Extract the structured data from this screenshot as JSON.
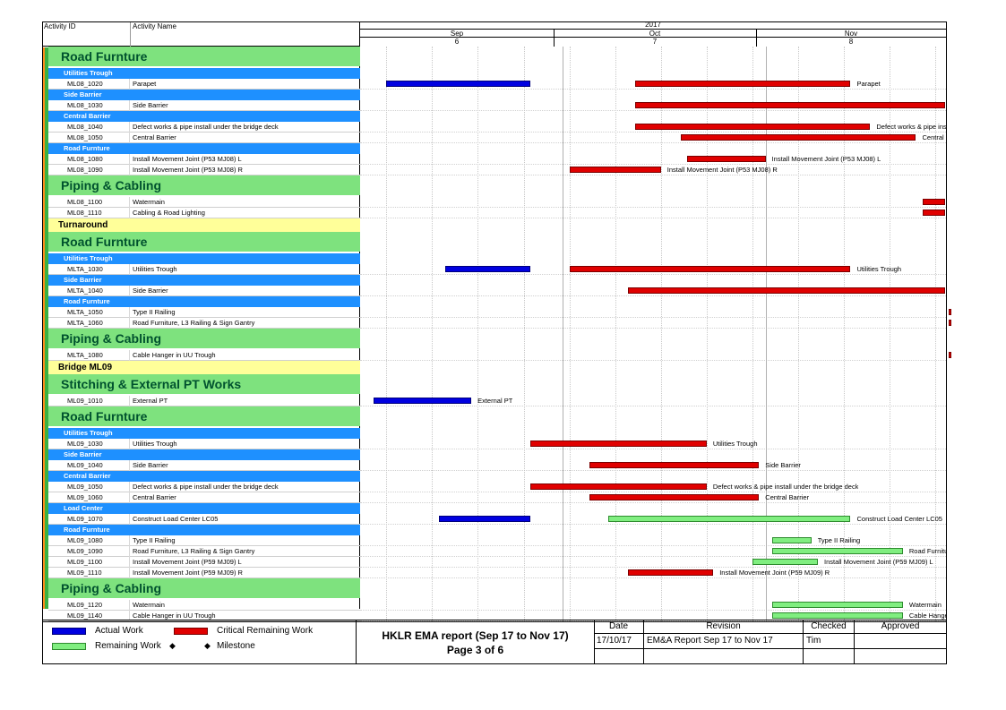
{
  "header": {
    "col_activity_id": "Activity ID",
    "col_activity_name": "Activity Name",
    "year": "2017",
    "months": [
      {
        "name": "Sep",
        "number": "6"
      },
      {
        "name": "Oct",
        "number": "7"
      },
      {
        "name": "Nov",
        "number": "8"
      }
    ]
  },
  "colors": {
    "section": "#7ee27e",
    "band": "#ffff99",
    "subsection": "#1e90ff",
    "actual": "#0000e0",
    "critical": "#e00000",
    "remaining": "#80ee80"
  },
  "chart_data": {
    "type": "gantt",
    "timeline": "Sep 2017 to Nov 2017",
    "rows": [
      {
        "kind": "section",
        "label": "Road Furnture"
      },
      {
        "kind": "sub",
        "label": "Utilities Trough"
      },
      {
        "kind": "act",
        "id": "ML08_1020",
        "name": "Parapet",
        "bars": [
          {
            "type": "actual",
            "start": "2017-09-04",
            "end": "2017-09-26"
          },
          {
            "type": "critical",
            "start": "2017-10-12",
            "end": "2017-11-14",
            "label": "Parapet"
          }
        ]
      },
      {
        "kind": "sub",
        "label": "Side Barrier"
      },
      {
        "kind": "act",
        "id": "ML08_1030",
        "name": "Side Barrier",
        "bars": [
          {
            "type": "critical",
            "start": "2017-10-12",
            "end": "2017-11-30"
          }
        ]
      },
      {
        "kind": "sub",
        "label": "Central Barrier"
      },
      {
        "kind": "act",
        "id": "ML08_1040",
        "name": "Defect works & pipe install under the bridge deck",
        "bars": [
          {
            "type": "critical",
            "start": "2017-10-12",
            "end": "2017-11-17",
            "label": "Defect works & pipe ins"
          }
        ]
      },
      {
        "kind": "act",
        "id": "ML08_1050",
        "name": "Central Barrier",
        "bars": [
          {
            "type": "critical",
            "start": "2017-10-19",
            "end": "2017-11-24",
            "label": "Central"
          }
        ]
      },
      {
        "kind": "sub",
        "label": "Road Furnture"
      },
      {
        "kind": "act",
        "id": "ML08_1080",
        "name": "Install Movement Joint (P53 MJ08) L",
        "bars": [
          {
            "type": "critical",
            "start": "2017-10-20",
            "end": "2017-11-01",
            "label": "Install Movement Joint (P53 MJ08) L"
          }
        ]
      },
      {
        "kind": "act",
        "id": "ML08_1090",
        "name": "Install Movement Joint (P53 MJ08) R",
        "bars": [
          {
            "type": "critical",
            "start": "2017-10-02",
            "end": "2017-10-16",
            "label": "Install Movement Joint (P53 MJ08) R"
          }
        ]
      },
      {
        "kind": "section",
        "label": "Piping & Cabling"
      },
      {
        "kind": "act",
        "id": "ML08_1100",
        "name": "Watermain",
        "bars": [
          {
            "type": "critical",
            "start": "2017-11-25",
            "end": "2017-11-30"
          }
        ]
      },
      {
        "kind": "act",
        "id": "ML08_1110",
        "name": "Cabling & Road Lighting",
        "bars": [
          {
            "type": "critical",
            "start": "2017-11-25",
            "end": "2017-11-30"
          }
        ]
      },
      {
        "kind": "band",
        "label": "Turnaround"
      },
      {
        "kind": "section",
        "label": "Road Furnture"
      },
      {
        "kind": "sub",
        "label": "Utilities Trough"
      },
      {
        "kind": "act",
        "id": "MLTA_1030",
        "name": "Utilities Trough",
        "bars": [
          {
            "type": "actual",
            "start": "2017-09-13",
            "end": "2017-09-26"
          },
          {
            "type": "critical",
            "start": "2017-10-02",
            "end": "2017-11-14",
            "label": "Utilities Trough"
          }
        ]
      },
      {
        "kind": "sub",
        "label": "Side Barrier"
      },
      {
        "kind": "act",
        "id": "MLTA_1040",
        "name": "Side Barrier",
        "bars": [
          {
            "type": "critical",
            "start": "2017-10-11",
            "end": "2017-11-29"
          }
        ]
      },
      {
        "kind": "sub",
        "label": "Road Furnture"
      },
      {
        "kind": "act",
        "id": "MLTA_1050",
        "name": "Type II Railing",
        "bars": [
          {
            "type": "critical",
            "start": "2017-11-29",
            "end": "2017-11-30"
          }
        ]
      },
      {
        "kind": "act",
        "id": "MLTA_1060",
        "name": "Road Furniture, L3 Railing & Sign Gantry",
        "bars": [
          {
            "type": "critical",
            "start": "2017-11-29",
            "end": "2017-11-30"
          }
        ]
      },
      {
        "kind": "section",
        "label": "Piping & Cabling"
      },
      {
        "kind": "act",
        "id": "MLTA_1080",
        "name": "Cable Hanger in UU Trough",
        "bars": [
          {
            "type": "critical",
            "start": "2017-11-29",
            "end": "2017-11-30"
          }
        ]
      },
      {
        "kind": "band",
        "label": "Bridge ML09"
      },
      {
        "kind": "section",
        "label": "Stitching & External PT Works"
      },
      {
        "kind": "act",
        "id": "ML09_1010",
        "name": "External PT",
        "bars": [
          {
            "type": "actual",
            "start": "2017-09-02",
            "end": "2017-09-17",
            "label": "External PT"
          }
        ]
      },
      {
        "kind": "section",
        "label": "Road Furnture"
      },
      {
        "kind": "sub",
        "label": "Utilities Trough"
      },
      {
        "kind": "act",
        "id": "ML09_1030",
        "name": "Utilities Trough",
        "bars": [
          {
            "type": "critical",
            "start": "2017-09-26",
            "end": "2017-10-23",
            "label": "Utilities Trough"
          }
        ]
      },
      {
        "kind": "sub",
        "label": "Side Barrier"
      },
      {
        "kind": "act",
        "id": "ML09_1040",
        "name": "Side Barrier",
        "bars": [
          {
            "type": "critical",
            "start": "2017-10-05",
            "end": "2017-10-31",
            "label": "Side Barrier"
          }
        ]
      },
      {
        "kind": "sub",
        "label": "Central Barrier"
      },
      {
        "kind": "act",
        "id": "ML09_1050",
        "name": "Defect works & pipe install under the bridge deck",
        "bars": [
          {
            "type": "critical",
            "start": "2017-09-26",
            "end": "2017-10-23",
            "label": "Defect works & pipe install under the bridge deck"
          }
        ]
      },
      {
        "kind": "act",
        "id": "ML09_1060",
        "name": "Central Barrier",
        "bars": [
          {
            "type": "critical",
            "start": "2017-10-05",
            "end": "2017-10-31",
            "label": "Central Barrier"
          }
        ]
      },
      {
        "kind": "sub",
        "label": "Load Center"
      },
      {
        "kind": "act",
        "id": "ML09_1070",
        "name": "Construct Load Center LC05",
        "bars": [
          {
            "type": "actual",
            "start": "2017-09-12",
            "end": "2017-09-26"
          },
          {
            "type": "remaining",
            "start": "2017-10-08",
            "end": "2017-11-14",
            "label": "Construct Load Center LC05"
          }
        ]
      },
      {
        "kind": "sub",
        "label": "Road Furnture"
      },
      {
        "kind": "act",
        "id": "ML09_1080",
        "name": "Type II Railing",
        "bars": [
          {
            "type": "remaining",
            "start": "2017-11-02",
            "end": "2017-11-08",
            "label": "Type II Railing"
          }
        ]
      },
      {
        "kind": "act",
        "id": "ML09_1090",
        "name": "Road Furniture, L3 Railing & Sign Gantry",
        "bars": [
          {
            "type": "remaining",
            "start": "2017-11-02",
            "end": "2017-11-22",
            "label": "Road Furniture"
          }
        ]
      },
      {
        "kind": "act",
        "id": "ML09_1100",
        "name": "Install Movement Joint (P59 MJ09) L",
        "bars": [
          {
            "type": "remaining",
            "start": "2017-10-30",
            "end": "2017-11-09",
            "label": "Install Movement Joint (P59 MJ09) L"
          }
        ]
      },
      {
        "kind": "act",
        "id": "ML09_1110",
        "name": "Install Movement Joint (P59 MJ09) R",
        "bars": [
          {
            "type": "critical",
            "start": "2017-10-11",
            "end": "2017-10-24",
            "label": "Install Movement Joint (P59 MJ09) R"
          }
        ]
      },
      {
        "kind": "section",
        "label": "Piping & Cabling"
      },
      {
        "kind": "act",
        "id": "ML09_1120",
        "name": "Watermain",
        "bars": [
          {
            "type": "remaining",
            "start": "2017-11-02",
            "end": "2017-11-22",
            "label": "Watermain"
          }
        ]
      },
      {
        "kind": "act",
        "id": "ML09_1140",
        "name": "Cable Hanger in UU Trough",
        "bars": [
          {
            "type": "remaining",
            "start": "2017-11-02",
            "end": "2017-11-22",
            "label": "Cable Hanger"
          }
        ]
      }
    ]
  },
  "legend": {
    "actual": "Actual Work",
    "critical": "Critical Remaining Work",
    "remaining": "Remaining Work",
    "milestone": "Milestone"
  },
  "footer": {
    "title": "HKLR EMA report (Sep 17 to Nov 17)",
    "page": "Page 3 of 6",
    "table_headers": [
      "Date",
      "Revision",
      "Checked",
      "Approved"
    ],
    "table_values": [
      "17/10/17",
      "EM&A Report Sep 17 to Nov 17",
      "Tim",
      ""
    ]
  }
}
